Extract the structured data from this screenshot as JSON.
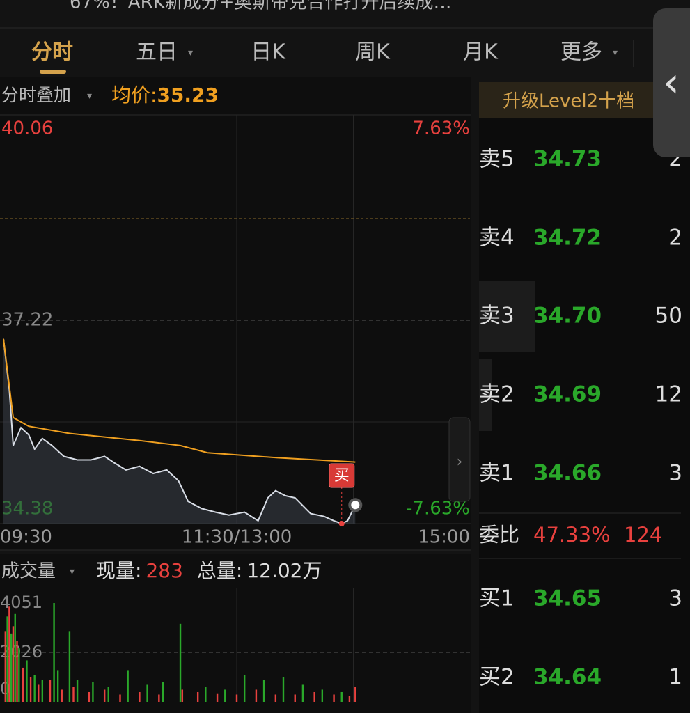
{
  "header": {
    "title": "67%！ARK新成分+奥斯帝克合作打开后续成…"
  },
  "tabs": [
    "分时",
    "五日",
    "日K",
    "周K",
    "月K",
    "更多"
  ],
  "overlay_label": "分时叠加",
  "avg_label": "均价:",
  "buy_marker": "买",
  "chart_data": [
    {
      "type": "line",
      "avg_value": 35.23,
      "xlim": [
        0,
        240
      ],
      "ylim": [
        34.38,
        40.06
      ],
      "xticks": [
        {
          "value": 0,
          "label": "09:30"
        },
        {
          "value": 120,
          "label": "11:30/13:00"
        },
        {
          "value": 240,
          "label": "15:00"
        }
      ],
      "yticks": [
        40.06,
        37.22,
        34.38
      ],
      "y2lim": [
        -7.63,
        7.63
      ],
      "y2ticks": [
        {
          "value": 7.63,
          "label": "7.63%"
        },
        {
          "value": -7.63,
          "label": "-7.63%"
        }
      ],
      "series": [
        {
          "color": "#d8dde6",
          "x": [
            0,
            3,
            5,
            9,
            13,
            16,
            20,
            25,
            31,
            38,
            45,
            52,
            57,
            63,
            70,
            77,
            84,
            90,
            95,
            102,
            109,
            116,
            124,
            131,
            136,
            140,
            145,
            150,
            158,
            165,
            170,
            174,
            177,
            181
          ],
          "values": [
            36.96,
            36.25,
            35.47,
            35.72,
            35.62,
            35.42,
            35.57,
            35.47,
            35.32,
            35.27,
            35.27,
            35.32,
            35.23,
            35.13,
            35.18,
            35.08,
            35.13,
            34.98,
            34.69,
            34.59,
            34.54,
            34.5,
            34.54,
            34.42,
            34.74,
            34.84,
            34.77,
            34.74,
            34.52,
            34.48,
            34.42,
            34.38,
            34.42,
            34.64
          ]
        },
        {
          "color": "#f0a020",
          "x": [
            0,
            5,
            13,
            34,
            70,
            91,
            105,
            141,
            181
          ],
          "values": [
            36.96,
            35.86,
            35.74,
            35.64,
            35.54,
            35.47,
            35.37,
            35.3,
            35.24
          ]
        }
      ]
    },
    {
      "type": "bar",
      "title": "成交量",
      "now_label": "现量:",
      "now_value": 283,
      "total_label": "总量:",
      "total_value": "12.02万",
      "xlim": [
        0,
        240
      ],
      "ylim": [
        0,
        4051
      ],
      "yticks": [
        4051,
        2026,
        0
      ],
      "series": [
        {
          "color": "#e8413e",
          "x": [
            1,
            3,
            5,
            7,
            10,
            14,
            18,
            24,
            30,
            36,
            44,
            52,
            60,
            70,
            80,
            92,
            100,
            110,
            120,
            130,
            140,
            150,
            160,
            170,
            178,
            181
          ],
          "values": [
            2900,
            3900,
            3100,
            2500,
            1400,
            1000,
            700,
            900,
            500,
            600,
            400,
            500,
            300,
            400,
            300,
            500,
            400,
            350,
            300,
            500,
            300,
            300,
            400,
            300,
            250,
            600
          ]
        },
        {
          "color": "#2aa82a",
          "x": [
            2,
            4,
            6,
            8,
            12,
            16,
            20,
            26,
            28,
            34,
            38,
            46,
            54,
            64,
            74,
            82,
            91,
            104,
            114,
            124,
            134,
            144,
            154,
            164,
            174
          ],
          "values": [
            3500,
            2800,
            3600,
            2200,
            1700,
            1100,
            900,
            4051,
            1300,
            2900,
            900,
            800,
            600,
            1300,
            700,
            800,
            3200,
            600,
            500,
            1100,
            900,
            1000,
            700,
            500,
            400
          ]
        }
      ]
    }
  ],
  "order_book": {
    "upgrade": "升级Level2十档",
    "asks": [
      {
        "label": "卖5",
        "price": "34.73",
        "qty": 2
      },
      {
        "label": "卖4",
        "price": "34.72",
        "qty": 2
      },
      {
        "label": "卖3",
        "price": "34.70",
        "qty": 50
      },
      {
        "label": "卖2",
        "price": "34.69",
        "qty": 12
      },
      {
        "label": "卖1",
        "price": "34.66",
        "qty": 3
      }
    ],
    "ratio_label": "委比",
    "ratio": "47.33%",
    "ratio_diff": 124,
    "bids": [
      {
        "label": "买1",
        "price": "34.65",
        "qty": 3
      },
      {
        "label": "买2",
        "price": "34.64",
        "qty": 1
      }
    ]
  }
}
